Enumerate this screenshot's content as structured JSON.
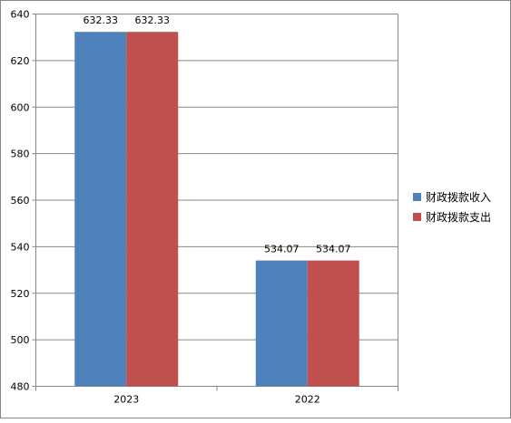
{
  "chart_data": {
    "type": "bar",
    "categories": [
      "2023",
      "2022"
    ],
    "series": [
      {
        "name": "财政拨款收入",
        "values": [
          632.33,
          534.07
        ],
        "color": "#4F81BD"
      },
      {
        "name": "财政拨款支出",
        "values": [
          632.33,
          534.07
        ],
        "color": "#C0504D"
      }
    ],
    "data_labels": [
      [
        "632.33",
        "534.07"
      ],
      [
        "632.33",
        "534.07"
      ]
    ],
    "ylim": [
      480,
      640
    ],
    "yticks": [
      "480",
      "500",
      "520",
      "540",
      "560",
      "580",
      "600",
      "620",
      "640"
    ],
    "grid": true,
    "legend_position": "right",
    "gridline_color": "#868686",
    "border_color": "#868686"
  }
}
